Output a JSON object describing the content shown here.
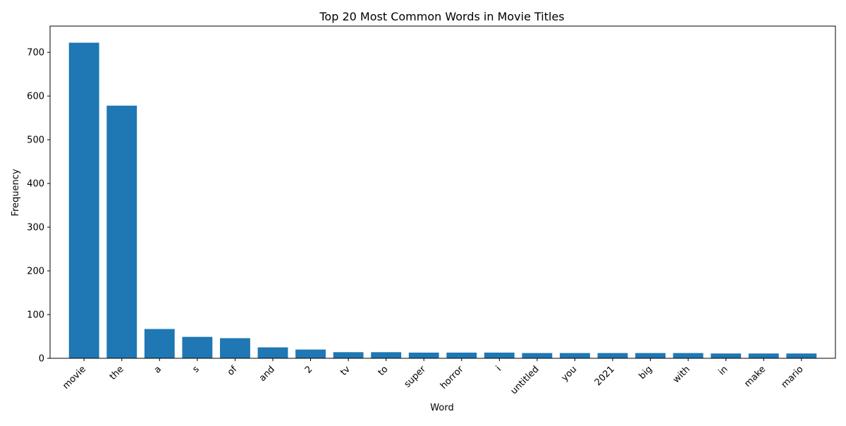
{
  "chart_data": {
    "type": "bar",
    "title": "Top 20 Most Common Words in Movie Titles",
    "xlabel": "Word",
    "ylabel": "Frequency",
    "categories": [
      "movie",
      "the",
      "a",
      "s",
      "of",
      "and",
      "2",
      "tv",
      "to",
      "super",
      "horror",
      "i",
      "untitled",
      "you",
      "2021",
      "big",
      "with",
      "in",
      "make",
      "mario"
    ],
    "values": [
      722,
      578,
      67,
      49,
      46,
      25,
      20,
      14,
      14,
      13,
      13,
      13,
      12,
      12,
      12,
      12,
      12,
      11,
      11,
      11
    ],
    "ylim": [
      0,
      760
    ],
    "yticks": [
      0,
      100,
      200,
      300,
      400,
      500,
      600,
      700
    ],
    "grid": false,
    "bar_color": "#1f77b4"
  }
}
